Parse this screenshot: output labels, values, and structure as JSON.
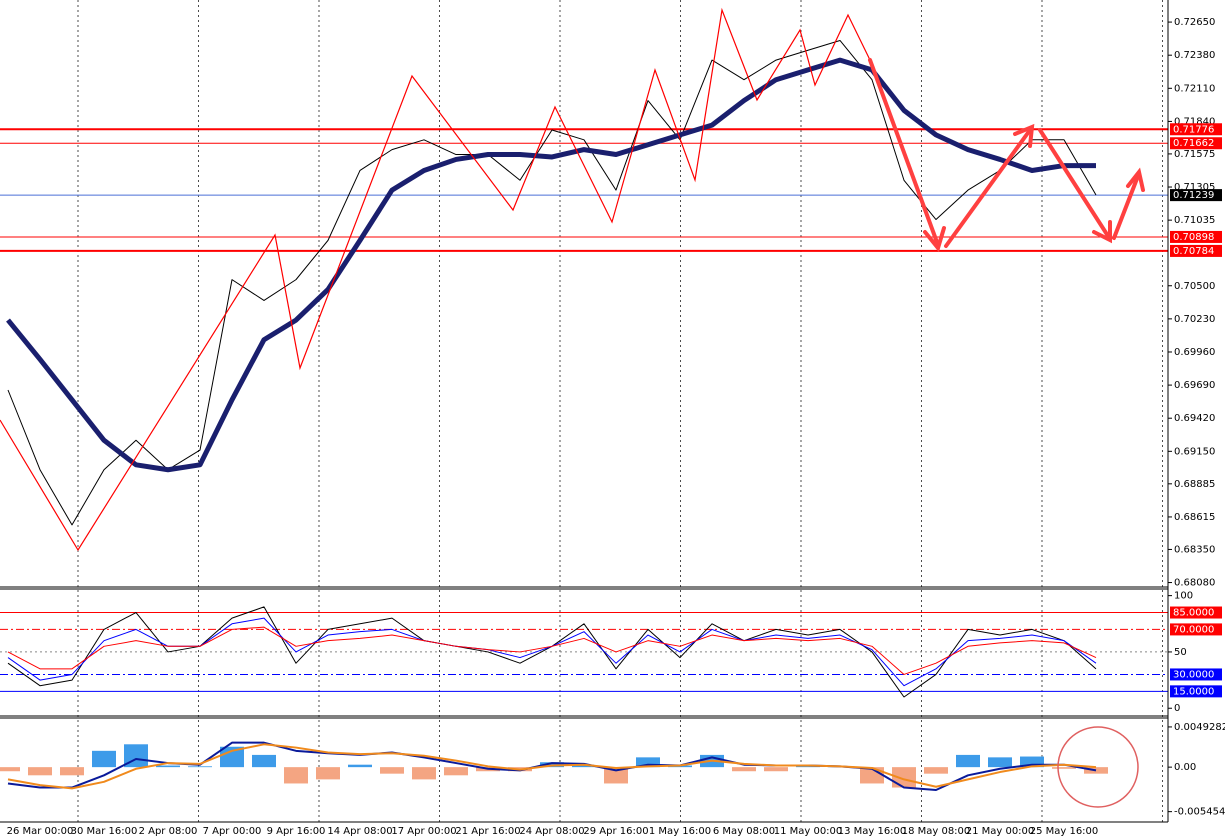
{
  "chart_data": [
    {
      "type": "line",
      "ylim": [
        0.6806,
        0.7283
      ],
      "yticks": [
        {
          "value": 0.7265,
          "label": "0.72650"
        },
        {
          "value": 0.7238,
          "label": "0.72380"
        },
        {
          "value": 0.7211,
          "label": "0.72110"
        },
        {
          "value": 0.7184,
          "label": "0.71840"
        },
        {
          "value": 0.71575,
          "label": "0.71575"
        },
        {
          "value": 0.71305,
          "label": "0.71305"
        },
        {
          "value": 0.71035,
          "label": "0.71035"
        },
        {
          "value": 0.705,
          "label": "0.70500"
        },
        {
          "value": 0.7023,
          "label": "0.70230"
        },
        {
          "value": 0.6996,
          "label": "0.69960"
        },
        {
          "value": 0.6969,
          "label": "0.69690"
        },
        {
          "value": 0.6942,
          "label": "0.69420"
        },
        {
          "value": 0.6915,
          "label": "0.69150"
        },
        {
          "value": 0.68885,
          "label": "0.68885"
        },
        {
          "value": 0.68615,
          "label": "0.68615"
        },
        {
          "value": 0.6835,
          "label": "0.68350"
        },
        {
          "value": 0.6808,
          "label": "0.68080"
        }
      ],
      "hlines": [
        {
          "value": 0.71776,
          "label": "0.71776",
          "color": "#ff0000",
          "width": 2
        },
        {
          "value": 0.71662,
          "label": "0.71662",
          "color": "#ff0000",
          "width": 1
        },
        {
          "value": 0.71239,
          "label": "0.71239",
          "color": "#4a6fd8",
          "width": 1,
          "box": "#000000"
        },
        {
          "value": 0.70898,
          "label": "0.70898",
          "color": "#ff0000",
          "width": 1
        },
        {
          "value": 0.70784,
          "label": "0.70784",
          "color": "#ff0000",
          "width": 2
        }
      ],
      "series": [
        {
          "color": "#000000",
          "width": 1,
          "values": [
            0.6965,
            0.69,
            0.6855,
            0.69,
            0.6924,
            0.69,
            0.6916,
            0.7055,
            0.7038,
            0.7055,
            0.7087,
            0.7144,
            0.7161,
            0.7169,
            0.7157,
            0.7157,
            0.7136,
            0.7177,
            0.7169,
            0.7128,
            0.7201,
            0.7169,
            0.7234,
            0.7218,
            0.7234,
            0.7242,
            0.725,
            0.7218,
            0.7136,
            0.7104,
            0.7128,
            0.7144,
            0.7169,
            0.7169,
            0.7124
          ]
        },
        {
          "color": "#1a1f6e",
          "width": 5,
          "values": [
            0.7022,
            0.699,
            0.6957,
            0.6924,
            0.6904,
            0.69,
            0.6904,
            0.6957,
            0.7006,
            0.7022,
            0.7047,
            0.7087,
            0.7128,
            0.7144,
            0.7153,
            0.7157,
            0.7157,
            0.7155,
            0.7161,
            0.7157,
            0.7165,
            0.7173,
            0.7181,
            0.7201,
            0.7218,
            0.7226,
            0.7234,
            0.7226,
            0.7193,
            0.7173,
            0.7161,
            0.7153,
            0.7144,
            0.7148,
            0.7148
          ]
        }
      ]
    },
    {
      "type": "line",
      "ylim": [
        -6,
        105
      ],
      "yticks": [
        100,
        50,
        0
      ],
      "hlines": [
        {
          "value": 85,
          "label": "85.0000",
          "color": "#ff0000",
          "width": 1
        },
        {
          "value": 70,
          "label": "70.0000",
          "color": "#ff0000",
          "width": 1,
          "dash": "8 3 2 3"
        },
        {
          "value": 30,
          "label": "30.0000",
          "color": "#0000ff",
          "width": 1,
          "dash": "8 3 2 3"
        },
        {
          "value": 15,
          "label": "15.0000",
          "color": "#0000ff",
          "width": 1
        }
      ],
      "series": [
        {
          "color": "#000000",
          "width": 1,
          "values": [
            40,
            20,
            25,
            70,
            85,
            50,
            55,
            80,
            90,
            40,
            70,
            75,
            80,
            60,
            55,
            50,
            40,
            55,
            75,
            35,
            70,
            45,
            75,
            60,
            70,
            65,
            70,
            50,
            10,
            30,
            70,
            65,
            70,
            60,
            35
          ]
        },
        {
          "color": "#0000ff",
          "width": 1,
          "values": [
            45,
            25,
            30,
            60,
            70,
            55,
            55,
            75,
            80,
            50,
            65,
            68,
            70,
            60,
            55,
            52,
            45,
            55,
            68,
            40,
            65,
            50,
            70,
            60,
            65,
            62,
            65,
            52,
            20,
            35,
            60,
            62,
            65,
            60,
            40
          ]
        },
        {
          "color": "#ff0000",
          "width": 1,
          "values": [
            50,
            35,
            35,
            55,
            60,
            55,
            55,
            70,
            72,
            55,
            60,
            62,
            65,
            60,
            55,
            52,
            50,
            55,
            62,
            50,
            60,
            55,
            65,
            60,
            62,
            60,
            62,
            55,
            30,
            40,
            55,
            58,
            60,
            58,
            45
          ]
        }
      ]
    },
    {
      "type": "macd",
      "ylim": [
        -0.0066,
        0.0059
      ],
      "yticks": [
        0.0049282,
        {
          "value": 0,
          "label": "0.00"
        },
        -0.005454
      ],
      "categories": [
        null,
        "26 Mar 00:00",
        null,
        "30 Mar 16:00",
        null,
        "2 Apr 08:00",
        null,
        "7 Apr 00:00",
        null,
        "9 Apr 16:00",
        null,
        "14 Apr 08:00",
        null,
        "17 Apr 00:00",
        null,
        "21 Apr 16:00",
        null,
        "24 Apr 08:00",
        null,
        "29 Apr 16:00",
        null,
        "1 May 16:00",
        null,
        "6 May 08:00",
        null,
        "11 May 00:00",
        null,
        "13 May 16:00",
        null,
        "18 May 08:00",
        null,
        "21 May 00:00",
        null,
        "25 May 16:00",
        null
      ],
      "histogram": {
        "pos_color": "#3d9be9",
        "neg_color": "#f4a582",
        "values": [
          -0.0005,
          -0.001,
          -0.001,
          0.002,
          0.0028,
          0.0002,
          0.0001,
          0.0025,
          0.0015,
          -0.002,
          -0.0015,
          0.0003,
          -0.0008,
          -0.0015,
          -0.001,
          -0.0005,
          -0.0005,
          0.0006,
          0.0002,
          -0.002,
          0.0012,
          0.0002,
          0.0015,
          -0.0005,
          -0.0005,
          0.0002,
          0.0001,
          -0.002,
          -0.0025,
          -0.0008,
          0.0015,
          0.0012,
          0.0013,
          -0.0002,
          -0.0008
        ]
      },
      "series": [
        {
          "color": "#0a1a9a",
          "width": 2,
          "values": [
            -0.002,
            -0.0025,
            -0.0025,
            -0.001,
            0.001,
            0.0005,
            0.0003,
            0.003,
            0.003,
            0.002,
            0.0017,
            0.0015,
            0.0018,
            0.0012,
            0.0005,
            -0.0002,
            -0.0004,
            0.0005,
            0.0004,
            -0.0004,
            0.0003,
            0.0002,
            0.0012,
            0.0003,
            0.0002,
            0.0002,
            0.0001,
            -0.0002,
            -0.0025,
            -0.0028,
            -0.001,
            -0.0002,
            0.0003,
            0.0003,
            -0.0004
          ]
        },
        {
          "color": "#f08a1c",
          "width": 2,
          "values": [
            -0.0015,
            -0.0022,
            -0.0026,
            -0.0018,
            -0.0002,
            0.0005,
            0.0004,
            0.002,
            0.0028,
            0.0024,
            0.0018,
            0.0016,
            0.0017,
            0.0014,
            0.0008,
            0.0001,
            -0.0003,
            0.0002,
            0.0003,
            -0.0001,
            0.0001,
            0.0002,
            0.0008,
            0.0004,
            0.0002,
            0.0002,
            0.0001,
            -0.0001,
            -0.0015,
            -0.0024,
            -0.0015,
            -0.0006,
            0.0001,
            0.0003,
            0
          ]
        }
      ]
    }
  ]
}
